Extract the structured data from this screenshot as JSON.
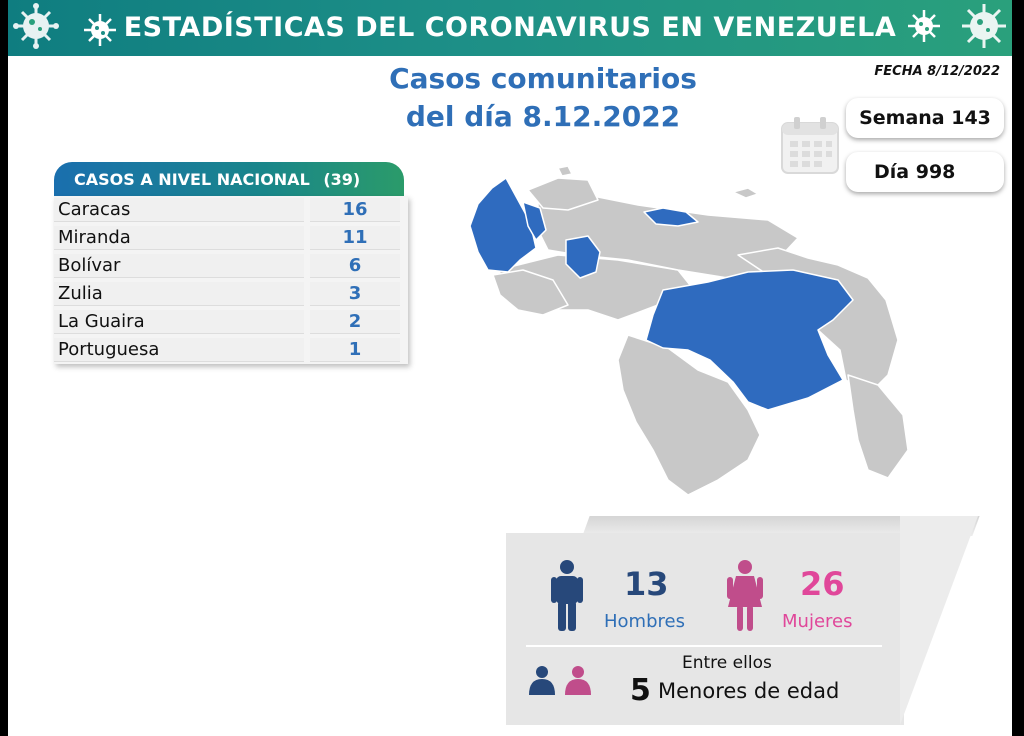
{
  "header": {
    "title": "ESTADÍSTICAS DEL CORONAVIRUS EN VENEZUELA",
    "accent": "#1d8f87"
  },
  "fecha": "FECHA 8/12/2022",
  "subtitle": {
    "line1": "Casos comunitarios",
    "line2": "del día 8.12.2022"
  },
  "counters": {
    "semana": "Semana 143",
    "dia": "Día 998"
  },
  "chart_data": {
    "type": "table",
    "title": "CASOS A NIVEL NACIONAL",
    "total": "(39)",
    "rows": [
      {
        "state": "Caracas",
        "cases": 16
      },
      {
        "state": "Miranda",
        "cases": 11
      },
      {
        "state": "Bolívar",
        "cases": 6
      },
      {
        "state": "Zulia",
        "cases": 3
      },
      {
        "state": "La Guaira",
        "cases": 2
      },
      {
        "state": "Portuguesa",
        "cases": 1
      }
    ]
  },
  "map": {
    "highlight_color": "#2f6bbf",
    "base_color": "#c8c8c8"
  },
  "demographics": {
    "hombres_count": "13",
    "hombres_label": "Hombres",
    "hombres_color": "#27487a",
    "mujeres_count": "26",
    "mujeres_label": "Mujeres",
    "mujeres_color": "#e0479a",
    "entre_ellos": "Entre ellos",
    "menores_count": "5",
    "menores_label": "Menores de edad"
  }
}
